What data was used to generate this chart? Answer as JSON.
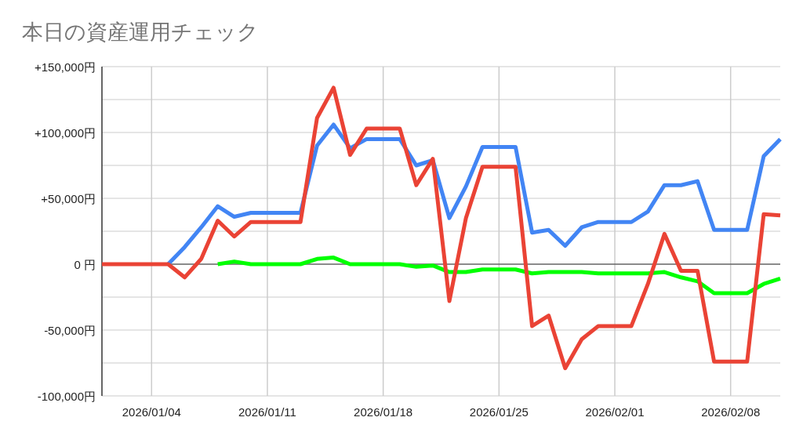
{
  "chart_data": {
    "type": "line",
    "title": "本日の資産運用チェック",
    "x": [
      "2026-01-01",
      "2026-01-02",
      "2026-01-03",
      "2026-01-04",
      "2026-01-05",
      "2026-01-06",
      "2026-01-07",
      "2026-01-08",
      "2026-01-09",
      "2026-01-10",
      "2026-01-11",
      "2026-01-12",
      "2026-01-13",
      "2026-01-14",
      "2026-01-15",
      "2026-01-16",
      "2026-01-17",
      "2026-01-18",
      "2026-01-19",
      "2026-01-20",
      "2026-01-21",
      "2026-01-22",
      "2026-01-23",
      "2026-01-24",
      "2026-01-25",
      "2026-01-26",
      "2026-01-27",
      "2026-01-28",
      "2026-01-29",
      "2026-01-30",
      "2026-01-31",
      "2026-02-01",
      "2026-02-02",
      "2026-02-03",
      "2026-02-04",
      "2026-02-05",
      "2026-02-06",
      "2026-02-07",
      "2026-02-08",
      "2026-02-09",
      "2026-02-10",
      "2026-02-11"
    ],
    "series": [
      {
        "color": "#00ff00",
        "values": [
          null,
          null,
          null,
          null,
          null,
          null,
          null,
          0,
          2000,
          0,
          0,
          0,
          0,
          4000,
          5000,
          0,
          0,
          0,
          0,
          -2000,
          -1000,
          -6000,
          -6000,
          -4000,
          -4000,
          -4000,
          -7000,
          -6000,
          -6000,
          -6000,
          -7000,
          -7000,
          -7000,
          -7000,
          -6000,
          -10000,
          -13000,
          -22000,
          -22000,
          -22000,
          -15000,
          -11000
        ]
      },
      {
        "color": "#4285f4",
        "values": [
          null,
          null,
          null,
          null,
          0,
          13000,
          28000,
          44000,
          36000,
          39000,
          39000,
          39000,
          39000,
          90000,
          106000,
          88000,
          95000,
          95000,
          95000,
          75000,
          79000,
          35000,
          59000,
          89000,
          89000,
          89000,
          24000,
          26000,
          14000,
          28000,
          32000,
          32000,
          32000,
          40000,
          60000,
          60000,
          63000,
          26000,
          26000,
          26000,
          82000,
          95000
        ]
      },
      {
        "color": "#ea4335",
        "values": [
          0,
          0,
          0,
          0,
          0,
          -10000,
          4000,
          33000,
          21000,
          32000,
          32000,
          32000,
          32000,
          111000,
          134000,
          83000,
          103000,
          103000,
          103000,
          60000,
          80000,
          -28000,
          35000,
          74000,
          74000,
          74000,
          -47000,
          -39000,
          -79000,
          -57000,
          -47000,
          -47000,
          -47000,
          -15000,
          23000,
          -5000,
          -5000,
          -74000,
          -74000,
          -74000,
          38000,
          37000
        ]
      }
    ],
    "xlim": [
      "2026-01-01",
      "2026-02-11"
    ],
    "xticks": [
      {
        "value": "2026-01-04",
        "label": "2026/01/04"
      },
      {
        "value": "2026-01-11",
        "label": "2026/01/11"
      },
      {
        "value": "2026-01-18",
        "label": "2026/01/18"
      },
      {
        "value": "2026-01-25",
        "label": "2026/01/25"
      },
      {
        "value": "2026-02-01",
        "label": "2026/02/01"
      },
      {
        "value": "2026-02-08",
        "label": "2026/02/08"
      }
    ],
    "ylim": [
      -100000,
      150000
    ],
    "yticks": [
      {
        "value": -100000,
        "label": "-100,000円"
      },
      {
        "value": -75000,
        "label": null
      },
      {
        "value": -50000,
        "label": "-50,000円"
      },
      {
        "value": -25000,
        "label": null
      },
      {
        "value": 0,
        "label": "0 円"
      },
      {
        "value": 25000,
        "label": null
      },
      {
        "value": 50000,
        "label": "+50,000円"
      },
      {
        "value": 75000,
        "label": null
      },
      {
        "value": 100000,
        "label": "+100,000円"
      },
      {
        "value": 125000,
        "label": null
      },
      {
        "value": 150000,
        "label": "+150,000円"
      }
    ],
    "grid": true
  }
}
